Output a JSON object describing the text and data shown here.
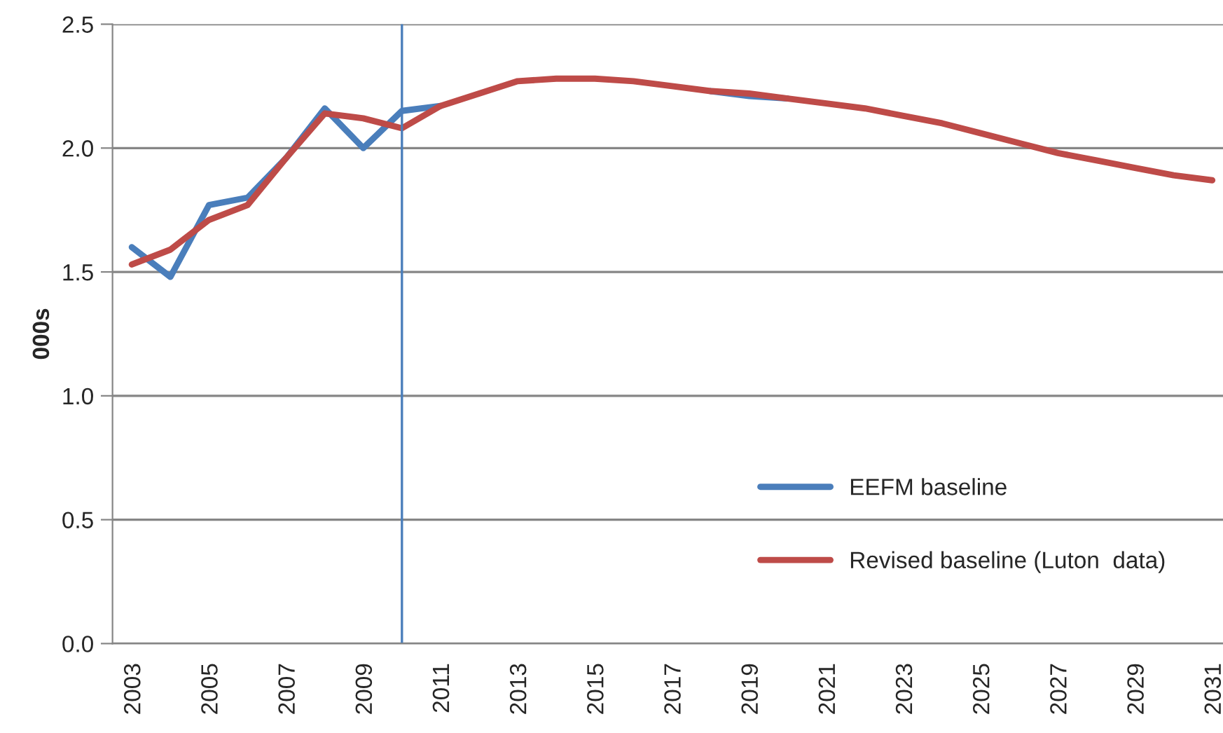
{
  "chart_data": {
    "type": "line",
    "ylabel": "000s",
    "x": [
      2003,
      2004,
      2005,
      2006,
      2007,
      2008,
      2009,
      2010,
      2011,
      2012,
      2013,
      2014,
      2015,
      2016,
      2017,
      2018,
      2019,
      2020,
      2021,
      2022,
      2023,
      2024,
      2025,
      2026,
      2027,
      2028,
      2029,
      2030,
      2031
    ],
    "series": [
      {
        "name": "EEFM baseline",
        "color": "#4a7ebb",
        "values": [
          1.6,
          1.48,
          1.77,
          1.8,
          1.96,
          2.16,
          2.0,
          2.15,
          2.17,
          null,
          null,
          null,
          null,
          null,
          null,
          2.23,
          2.21,
          2.2,
          null,
          null,
          null,
          null,
          null,
          null,
          null,
          null,
          null,
          null,
          null
        ]
      },
      {
        "name": "Revised baseline (Luton  data)",
        "color": "#be4b48",
        "values": [
          1.53,
          1.59,
          1.71,
          1.77,
          1.96,
          2.14,
          2.12,
          2.08,
          2.17,
          2.22,
          2.27,
          2.28,
          2.28,
          2.27,
          2.25,
          2.23,
          2.22,
          2.2,
          2.18,
          2.16,
          2.13,
          2.1,
          2.06,
          2.02,
          1.98,
          1.95,
          1.92,
          1.89,
          1.87
        ]
      }
    ],
    "xlim": [
      2002.5,
      2031.5
    ],
    "xticks": [
      2003,
      2005,
      2007,
      2009,
      2011,
      2013,
      2015,
      2017,
      2019,
      2021,
      2023,
      2025,
      2027,
      2029,
      2031
    ],
    "ylim": [
      0,
      2.5
    ],
    "yticks": [
      {
        "value": 0,
        "label": "0.0"
      },
      0.5,
      {
        "value": 1,
        "label": "1.0"
      },
      1.5,
      {
        "value": 2,
        "label": "2.0"
      },
      2.5
    ],
    "ref_lines": [
      {
        "axis": "x",
        "value": 2010,
        "color": "#4a7ebb"
      }
    ],
    "grid": "y",
    "legend": "lower right",
    "marker": "none",
    "line_style": "solid"
  }
}
